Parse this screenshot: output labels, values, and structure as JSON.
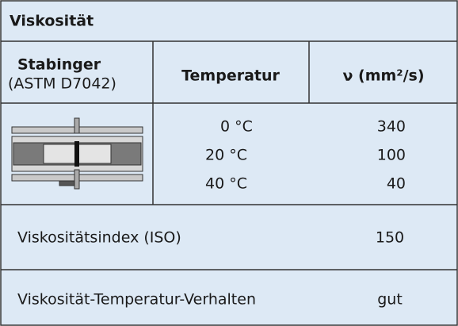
{
  "title": "Viskosität",
  "header": {
    "method": "Stabinger",
    "method_note": "(ASTM D7042)",
    "temperature": "Temperatur",
    "viscosity": "ν (mm²/s)"
  },
  "measurements": [
    {
      "temperature": "0 °C",
      "viscosity": "340"
    },
    {
      "temperature": "20 °C",
      "viscosity": "100"
    },
    {
      "temperature": "40 °C",
      "viscosity": "40"
    }
  ],
  "rows": [
    {
      "label": "Viskositätsindex (ISO)",
      "value": "150"
    },
    {
      "label": "Viskosität-Temperatur-Verhalten",
      "value": "gut"
    }
  ]
}
